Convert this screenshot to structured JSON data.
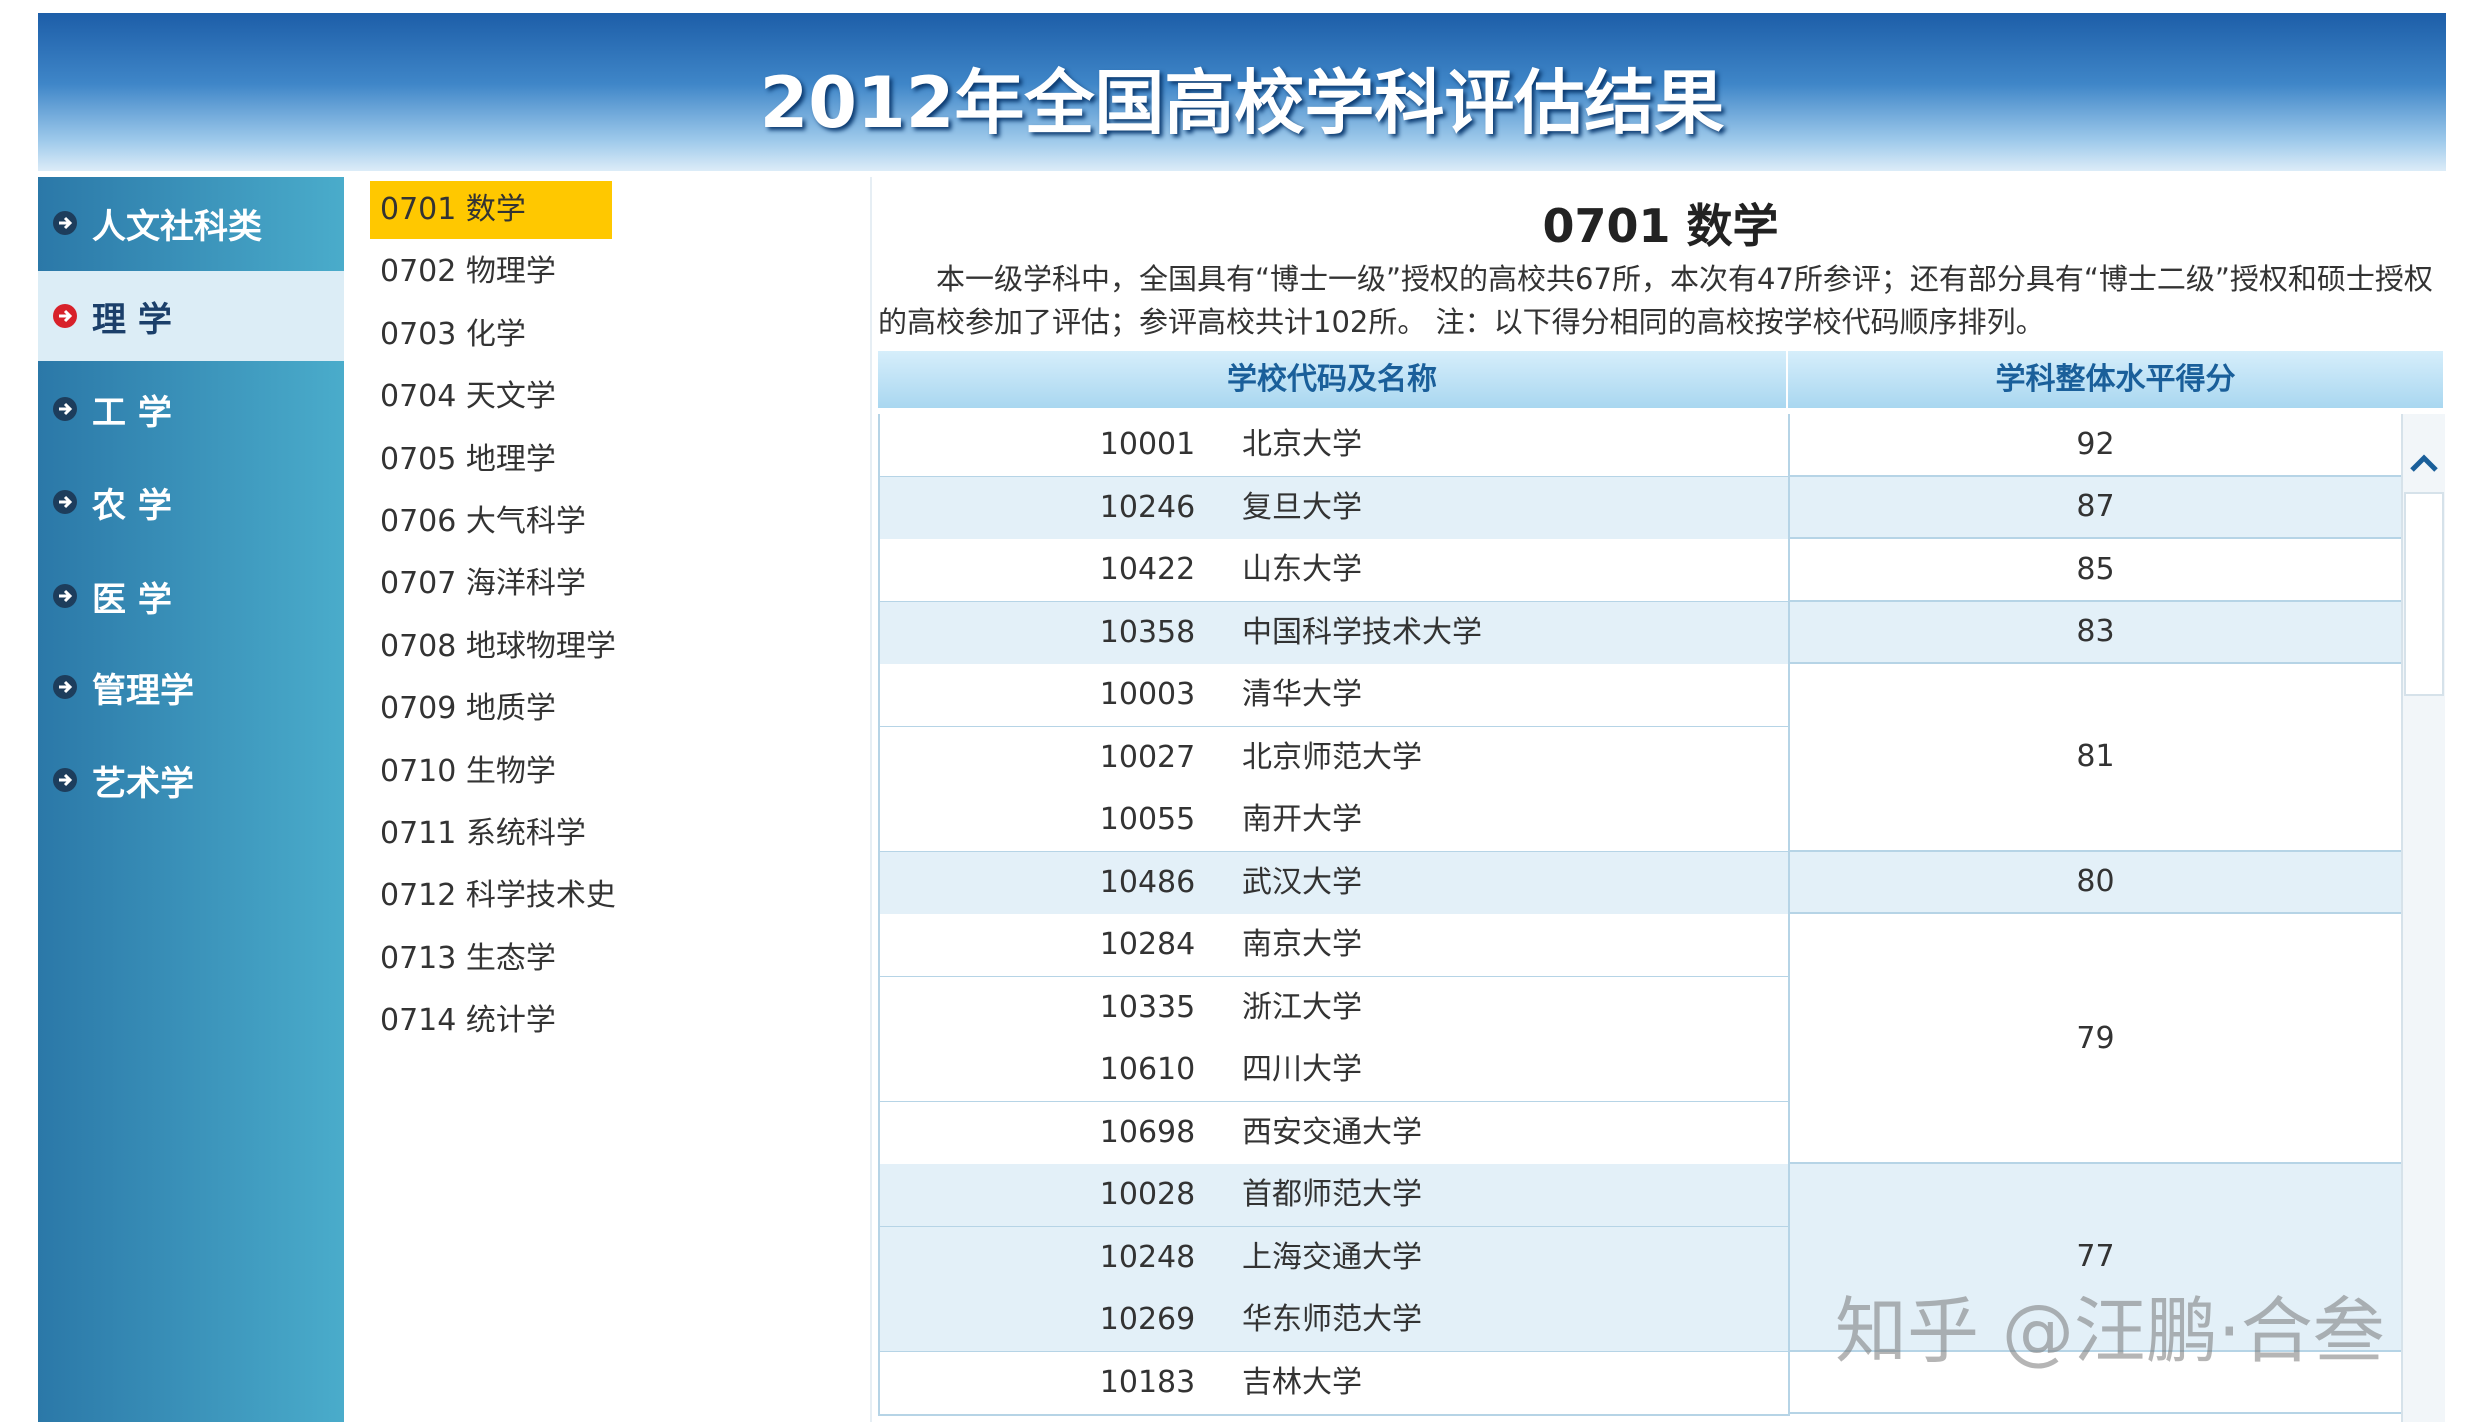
{
  "header": {
    "title": "2012年全国高校学科评估结果"
  },
  "nav": {
    "categories": [
      "人文社科类",
      "理 学",
      "工 学",
      "农 学",
      "医 学",
      "管理学",
      "艺术学"
    ]
  },
  "subjects": [
    "0701 数学",
    "0702 物理学",
    "0703 化学",
    "0704 天文学",
    "0705 地理学",
    "0706 大气科学",
    "0707 海洋科学",
    "0708 地球物理学",
    "0709 地质学",
    "0710 生物学",
    "0711 系统科学",
    "0712 科学技术史",
    "0713 生态学",
    "0714 统计学"
  ],
  "content": {
    "title": "0701 数学",
    "description": "本一级学科中，全国具有“博士一级”授权的高校共67所，本次有47所参评；还有部分具有“博士二级”授权和硕士授权的高校参加了评估；参评高校共计102所。 注：以下得分相同的高校按学校代码顺序排列。",
    "table": {
      "headers": [
        "学校代码及名称",
        "学科整体水平得分"
      ],
      "groups": [
        {
          "score": "92",
          "schools": [
            {
              "code": "10001",
              "name": "北京大学"
            }
          ]
        },
        {
          "score": "87",
          "schools": [
            {
              "code": "10246",
              "name": "复旦大学"
            }
          ]
        },
        {
          "score": "85",
          "schools": [
            {
              "code": "10422",
              "name": "山东大学"
            }
          ]
        },
        {
          "score": "83",
          "schools": [
            {
              "code": "10358",
              "name": "中国科学技术大学"
            }
          ]
        },
        {
          "score": "81",
          "schools": [
            {
              "code": "10003",
              "name": "清华大学"
            },
            {
              "code": "10027",
              "name": "北京师范大学"
            },
            {
              "code": "10055",
              "name": "南开大学"
            }
          ]
        },
        {
          "score": "80",
          "schools": [
            {
              "code": "10486",
              "name": "武汉大学"
            }
          ]
        },
        {
          "score": "79",
          "schools": [
            {
              "code": "10284",
              "name": "南京大学"
            },
            {
              "code": "10335",
              "name": "浙江大学"
            },
            {
              "code": "10610",
              "name": "四川大学"
            },
            {
              "code": "10698",
              "name": "西安交通大学"
            }
          ]
        },
        {
          "score": "77",
          "schools": [
            {
              "code": "10028",
              "name": "首都师范大学"
            },
            {
              "code": "10248",
              "name": "上海交通大学"
            },
            {
              "code": "10269",
              "name": "华东师范大学"
            }
          ]
        },
        {
          "schools": [
            {
              "code": "10183",
              "name": "吉林大学"
            }
          ]
        }
      ]
    }
  },
  "watermark": "知乎 @汪鹏·合叁"
}
